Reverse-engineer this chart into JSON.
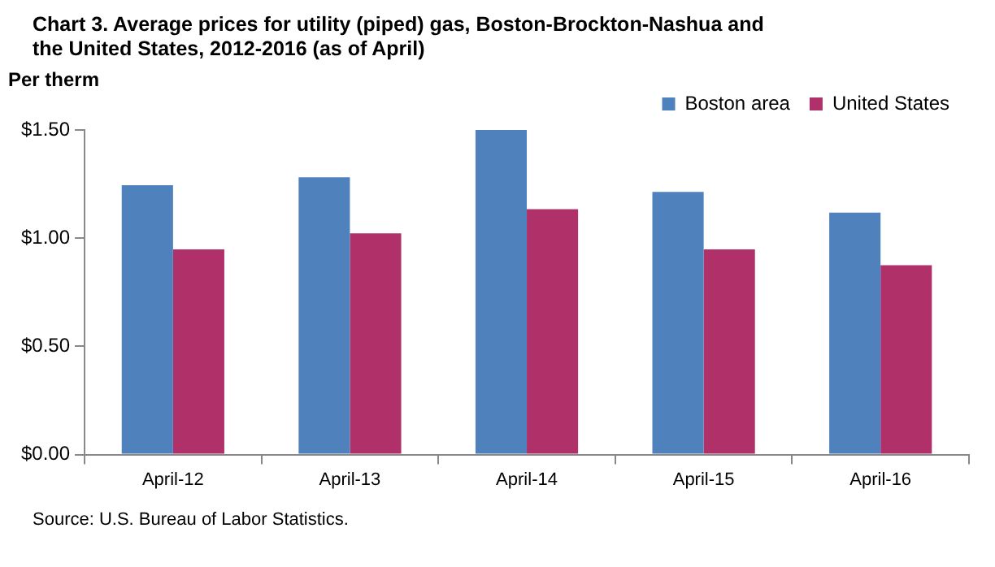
{
  "chart_data": {
    "type": "bar",
    "title": "Chart 3. Average prices for utility (piped) gas, Boston-Brockton-Nashua and the United  States, 2012-2016 (as of April)",
    "ylabel": "Per therm",
    "annotations": [
      "Source: U.S. Bureau of Labor Statistics."
    ],
    "categories": [
      "April-12",
      "April-13",
      "April-14",
      "April-15",
      "April-16"
    ],
    "series": [
      {
        "name": "Boston area",
        "color": "#4f81bd",
        "values": [
          1.245,
          1.281,
          1.5,
          1.214,
          1.118
        ]
      },
      {
        "name": "United States",
        "color": "#b0306a",
        "values": [
          0.948,
          1.022,
          1.134,
          0.948,
          0.875
        ]
      }
    ],
    "ylim": [
      0,
      1.5
    ],
    "yticks": [
      {
        "value": 0,
        "label": "$0.00"
      },
      {
        "value": 0.5,
        "label": "$0.50"
      },
      {
        "value": 1,
        "label": "$1.00"
      },
      {
        "value": 1.5,
        "label": "$1.50"
      }
    ],
    "grid": false,
    "legend": "top"
  }
}
